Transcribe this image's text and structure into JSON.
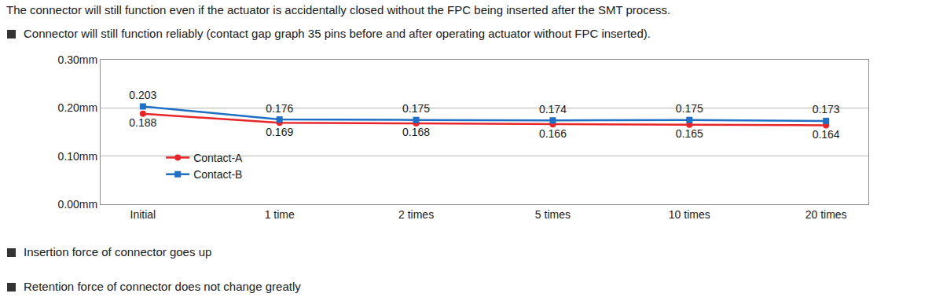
{
  "header": "The connector will still function even if the actuator is accidentally closed without the FPC being inserted after the SMT process.",
  "bullets_above": [
    "Connector will still function reliably (contact gap graph 35 pins before and after operating actuator without FPC inserted)."
  ],
  "chart_data": {
    "type": "line",
    "categories": [
      "Initial",
      "1 time",
      "2 times",
      "5 times",
      "10 times",
      "20 times"
    ],
    "series": [
      {
        "name": "Contact-A",
        "color": "#e8262a",
        "marker": "circle",
        "values": [
          0.188,
          0.169,
          0.168,
          0.166,
          0.165,
          0.164
        ]
      },
      {
        "name": "Contact-B",
        "color": "#1f6fc5",
        "marker": "square",
        "values": [
          0.203,
          0.176,
          0.175,
          0.174,
          0.175,
          0.173
        ]
      }
    ],
    "ylim": [
      0,
      0.3
    ],
    "yticks": [
      {
        "value": 0,
        "label": "0.00mm"
      },
      {
        "value": 0.1,
        "label": "0.10mm"
      },
      {
        "value": 0.2,
        "label": "0.20mm"
      },
      {
        "value": 0.3,
        "label": "0.30mm"
      }
    ],
    "grid": true,
    "legend": "lower left",
    "data_labels": true
  },
  "bullets_below": [
    "Insertion force of connector goes up",
    "Retention force of connector does not change greatly"
  ]
}
